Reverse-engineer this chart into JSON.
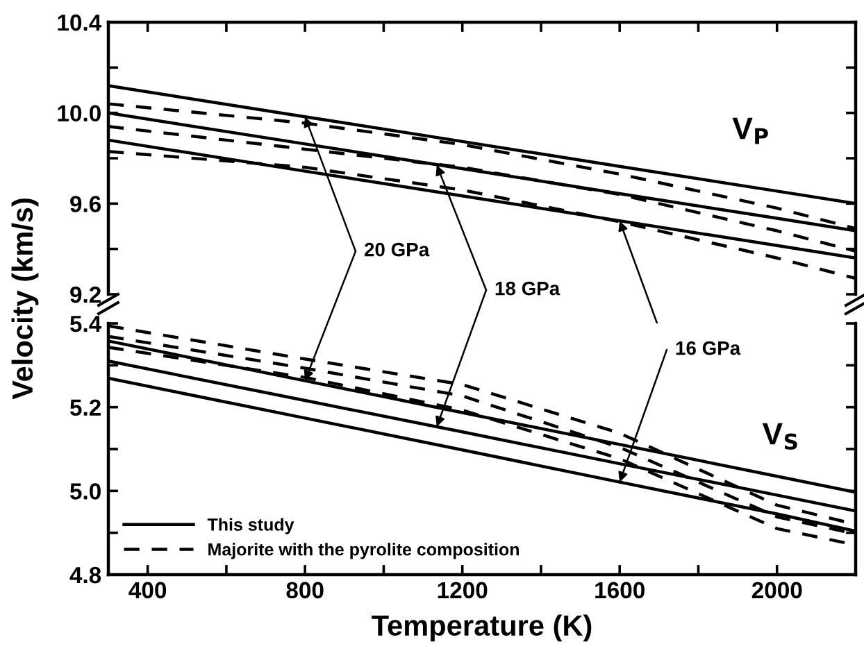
{
  "chart_data": [
    {
      "type": "line",
      "ylabel": "Velocity (km/s)",
      "x": [
        300,
        800,
        1200,
        1600,
        2000,
        2200
      ],
      "xlim": [
        300,
        2200
      ],
      "xticks": [
        {
          "value": 400,
          "label": null
        },
        {
          "value": 600,
          "label": null
        },
        {
          "value": 800,
          "label": null
        },
        {
          "value": 1000,
          "label": null
        },
        {
          "value": 1200,
          "label": null
        },
        {
          "value": 1400,
          "label": null
        },
        {
          "value": 1600,
          "label": null
        },
        {
          "value": 1800,
          "label": null
        },
        {
          "value": 2000,
          "label": null
        }
      ],
      "ylim": [
        9.2,
        10.4
      ],
      "yticks": [
        9.2,
        {
          "value": 9.4,
          "label": null
        },
        9.6,
        {
          "value": 9.8,
          "label": null
        },
        {
          "value": 10.0,
          "label": "10.0"
        },
        {
          "value": 10.2,
          "label": null
        },
        10.4
      ],
      "tick_labels": "y",
      "grid": false,
      "legend": false,
      "series": [
        {
          "color": "#000000",
          "line_style": "solid",
          "values": [
            10.12,
            9.983,
            9.874,
            9.764,
            9.655,
            9.6
          ]
        },
        {
          "color": "#000000",
          "line_style": "solid",
          "values": [
            10.0,
            9.863,
            9.754,
            9.644,
            9.535,
            9.48
          ]
        },
        {
          "color": "#000000",
          "line_style": "solid",
          "values": [
            9.88,
            9.743,
            9.634,
            9.524,
            9.415,
            9.36
          ]
        },
        {
          "color": "#000000",
          "line_style": "dashed",
          "values": [
            10.04,
            9.955,
            9.86,
            9.73,
            9.58,
            9.49
          ]
        },
        {
          "color": "#000000",
          "line_style": "dashed",
          "values": [
            9.94,
            9.84,
            9.76,
            9.64,
            9.48,
            9.39
          ]
        },
        {
          "color": "#000000",
          "line_style": "dashed",
          "values": [
            9.83,
            9.76,
            9.66,
            9.52,
            9.36,
            9.27
          ]
        }
      ],
      "annotations": [
        {
          "text": "20 GPa",
          "x": 800,
          "y": 9.983
        },
        {
          "text": "18 GPa",
          "x": 1135,
          "y": 9.77
        },
        {
          "text": "16 GPa",
          "x": 1600,
          "y": 9.524
        },
        "V$_{P}$"
      ]
    },
    {
      "type": "line",
      "xlabel": "Temperature (K)",
      "x": [
        300,
        800,
        1200,
        1600,
        2000,
        2200
      ],
      "xlim": [
        300,
        2200
      ],
      "xticks": [
        400,
        {
          "value": 600,
          "label": null
        },
        800,
        {
          "value": 1000,
          "label": null
        },
        1200,
        {
          "value": 1400,
          "label": null
        },
        1600,
        {
          "value": 1800,
          "label": null
        },
        2000
      ],
      "ylim": [
        4.8,
        5.4
      ],
      "yticks": [
        4.8,
        {
          "value": 4.9,
          "label": null
        },
        {
          "value": 5.0,
          "label": "5.0"
        },
        {
          "value": 5.1,
          "label": null
        },
        5.2,
        {
          "value": 5.3,
          "label": null
        },
        5.4
      ],
      "grid": false,
      "legend": "bottom left",
      "series": [
        {
          "name": "This study",
          "color": "#000000",
          "line_style": "solid",
          "values": [
            5.358,
            5.263,
            5.187,
            5.111,
            5.035,
            4.997
          ]
        },
        {
          "color": "#000000",
          "line_style": "solid",
          "values": [
            5.31,
            5.216,
            5.141,
            5.065,
            4.99,
            4.952
          ]
        },
        {
          "color": "#000000",
          "line_style": "solid",
          "values": [
            5.269,
            5.174,
            5.098,
            5.021,
            4.945,
            4.904
          ]
        },
        {
          "name": "Majorite with the pyrolite composition",
          "color": "#000000",
          "line_style": "dashed",
          "values": [
            5.394,
            5.315,
            5.254,
            5.138,
            4.966,
            4.92
          ]
        },
        {
          "color": "#000000",
          "line_style": "dashed",
          "values": [
            5.369,
            5.293,
            5.227,
            5.104,
            4.938,
            4.897
          ]
        },
        {
          "color": "#000000",
          "line_style": "dashed",
          "values": [
            5.343,
            5.271,
            5.193,
            5.077,
            4.91,
            4.871
          ]
        }
      ],
      "annotations": [
        "V$_{S}$"
      ]
    }
  ]
}
